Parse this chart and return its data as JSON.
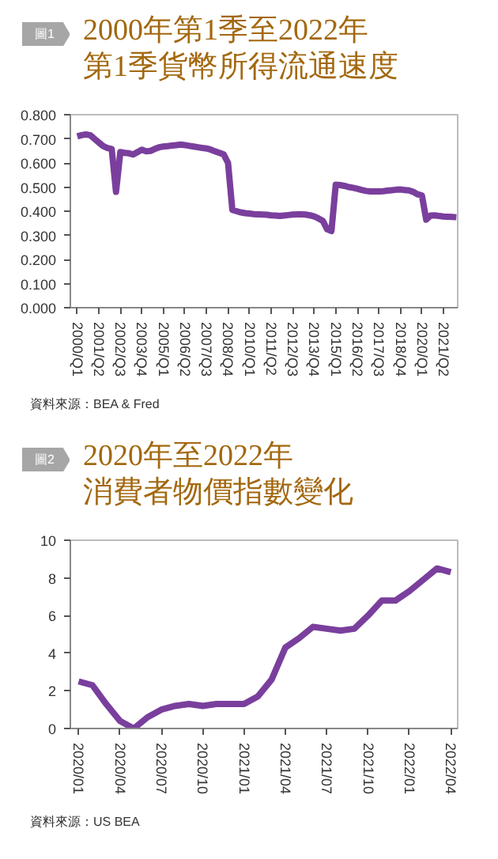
{
  "chart_data": [
    {
      "type": "line",
      "title": "2000年第1季至2022年",
      "subtitle": "第1季貨幣所得流通速度",
      "annotations": [
        "圖1",
        "資料來源：BEA & Fred"
      ],
      "categories": [
        "2000/Q1",
        null,
        null,
        null,
        null,
        "2001/Q2",
        null,
        null,
        null,
        null,
        "2002/Q3",
        null,
        null,
        null,
        null,
        "2003/Q4",
        null,
        null,
        null,
        null,
        "2005/Q1",
        null,
        null,
        null,
        null,
        "2006/Q2",
        null,
        null,
        null,
        null,
        "2007/Q3",
        null,
        null,
        null,
        null,
        "2008/Q4",
        null,
        null,
        null,
        null,
        "2010/Q1",
        null,
        null,
        null,
        null,
        "2011/Q2",
        null,
        null,
        null,
        null,
        "2012/Q3",
        null,
        null,
        null,
        null,
        "2013/Q4",
        null,
        null,
        null,
        null,
        "2015/Q1",
        null,
        null,
        null,
        null,
        "2016/Q2",
        null,
        null,
        null,
        null,
        "2017/Q3",
        null,
        null,
        null,
        null,
        "2018/Q4",
        null,
        null,
        null,
        null,
        "2020/Q1",
        null,
        null,
        null,
        null,
        "2021/Q2",
        null,
        null,
        null
      ],
      "values": [
        0.71,
        0.715,
        0.718,
        0.715,
        0.7,
        0.685,
        0.67,
        0.662,
        0.658,
        0.48,
        0.645,
        0.642,
        0.64,
        0.635,
        0.645,
        0.655,
        0.648,
        0.65,
        0.658,
        0.665,
        0.668,
        0.67,
        0.672,
        0.674,
        0.676,
        0.674,
        0.671,
        0.668,
        0.665,
        0.662,
        0.66,
        0.655,
        0.648,
        0.642,
        0.635,
        0.6,
        0.405,
        0.4,
        0.395,
        0.392,
        0.39,
        0.388,
        0.387,
        0.386,
        0.385,
        0.383,
        0.382,
        0.38,
        0.382,
        0.384,
        0.386,
        0.387,
        0.387,
        0.386,
        0.383,
        0.378,
        0.37,
        0.36,
        0.325,
        0.318,
        0.51,
        0.508,
        0.505,
        0.5,
        0.497,
        0.493,
        0.488,
        0.484,
        0.482,
        0.482,
        0.482,
        0.483,
        0.485,
        0.487,
        0.489,
        0.49,
        0.488,
        0.486,
        0.48,
        0.47,
        0.465,
        0.365,
        0.382,
        0.383,
        0.38,
        0.378,
        0.377,
        0.376,
        0.375
      ],
      "color": "#7a3f9d",
      "ylim": [
        0,
        0.8
      ],
      "yticks": [
        {
          "value": 0,
          "label": "0.000"
        },
        {
          "value": 0.1,
          "label": "0.100"
        },
        {
          "value": 0.2,
          "label": "0.200"
        },
        {
          "value": 0.3,
          "label": "0.300"
        },
        {
          "value": 0.4,
          "label": "0.400"
        },
        {
          "value": 0.5,
          "label": "0.500"
        },
        {
          "value": 0.6,
          "label": "0.600"
        },
        {
          "value": 0.7,
          "label": "0.700"
        },
        {
          "value": 0.8,
          "label": "0.800"
        }
      ]
    },
    {
      "type": "line",
      "title": "2020年至2022年",
      "subtitle": "消費者物價指數變化",
      "annotations": [
        "圖2",
        "資料來源：US BEA"
      ],
      "categories": [
        "2020/01",
        null,
        null,
        "2020/04",
        null,
        null,
        "2020/07",
        null,
        null,
        "2020/10",
        null,
        null,
        "2021/01",
        null,
        null,
        "2021/04",
        null,
        null,
        "2021/07",
        null,
        null,
        "2021/10",
        null,
        null,
        "2022/01",
        null,
        null,
        "2022/04"
      ],
      "values": [
        2.5,
        2.3,
        1.3,
        0.4,
        0.0,
        0.6,
        1.0,
        1.2,
        1.3,
        1.2,
        1.3,
        1.3,
        1.3,
        1.7,
        2.6,
        4.3,
        4.8,
        5.4,
        5.3,
        5.2,
        5.3,
        6.0,
        6.8,
        6.8,
        7.3,
        7.9,
        8.5,
        8.3
      ],
      "color": "#7a3f9d",
      "ylim": [
        0,
        10
      ],
      "yticks": [
        0,
        2,
        4,
        6,
        8,
        10
      ]
    }
  ]
}
